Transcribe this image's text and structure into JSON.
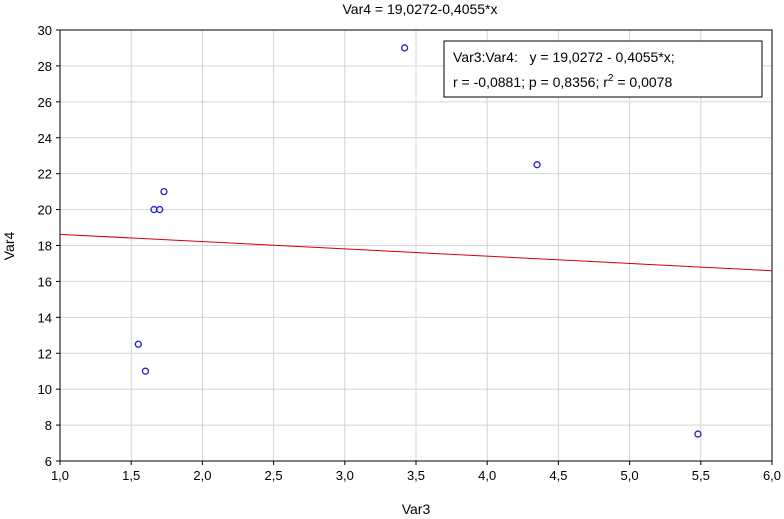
{
  "chart_data": {
    "type": "scatter",
    "title": "Var4 = 19,0272-0,4055*x",
    "xlabel": "Var3",
    "ylabel": "Var4",
    "xlim": [
      1.0,
      6.0
    ],
    "ylim": [
      6,
      30
    ],
    "x_ticks": [
      "1,0",
      "1,5",
      "2,0",
      "2,5",
      "3,0",
      "3,5",
      "4,0",
      "4,5",
      "5,0",
      "5,5",
      "6,0"
    ],
    "y_ticks": [
      "6",
      "8",
      "10",
      "12",
      "14",
      "16",
      "18",
      "20",
      "22",
      "24",
      "26",
      "28",
      "30"
    ],
    "grid": true,
    "points": [
      {
        "x": 1.55,
        "y": 12.5
      },
      {
        "x": 1.6,
        "y": 11.0
      },
      {
        "x": 1.66,
        "y": 20.0
      },
      {
        "x": 1.7,
        "y": 20.0
      },
      {
        "x": 1.73,
        "y": 21.0
      },
      {
        "x": 3.42,
        "y": 29.0
      },
      {
        "x": 4.35,
        "y": 22.5
      },
      {
        "x": 5.48,
        "y": 7.5
      }
    ],
    "regression": {
      "intercept": 19.0272,
      "slope": -0.4055
    },
    "legend": {
      "placement": "top-right",
      "line1": "Var3:Var4:   y = 19,0272 - 0,4055*x;",
      "line2_prefix": "r = -0,0881; p = 0,8356; r",
      "line2_sup": "2",
      "line2_suffix": " = 0,0078"
    },
    "colors": {
      "point": "#1f1fd1",
      "regression_line": "#d40000",
      "grid": "#d4d4d4",
      "axis": "#000000"
    }
  }
}
